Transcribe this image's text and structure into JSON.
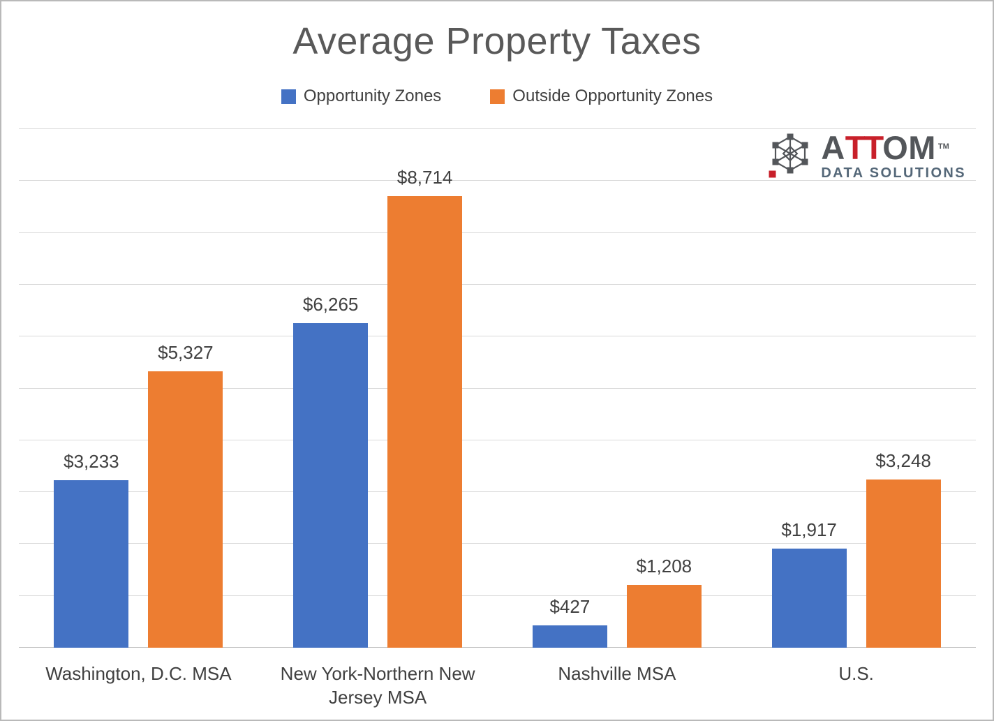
{
  "chart_data": {
    "type": "bar",
    "title": "Average Property Taxes",
    "categories": [
      "Washington, D.C. MSA",
      "New York-Northern New Jersey MSA",
      "Nashville MSA",
      "U.S."
    ],
    "series": [
      {
        "name": "Opportunity Zones",
        "color": "#4472C4",
        "values": [
          3233,
          6265,
          427,
          1917
        ],
        "labels": [
          "$3,233",
          "$6,265",
          "$427",
          "$1,917"
        ]
      },
      {
        "name": "Outside Opportunity Zones",
        "color": "#ED7D31",
        "values": [
          5327,
          8714,
          1208,
          3248
        ],
        "labels": [
          "$5,327",
          "$8,714",
          "$1,208",
          "$3,248"
        ]
      }
    ],
    "ylim": [
      0,
      10000
    ],
    "gridline_step": 1000,
    "grid": true,
    "legend_position": "top",
    "y_axis_labels_visible": false
  },
  "logo": {
    "brand_part1": "A",
    "brand_part2": "TT",
    "brand_part3": "OM",
    "trademark": "TM",
    "subtitle": "DATA SOLUTIONS"
  },
  "colors": {
    "series1": "#4472C4",
    "series2": "#ED7D31",
    "title_text": "#595959",
    "label_text": "#404040",
    "gridline": "#D9D9D9",
    "baseline": "#BFBFBF",
    "page_border": "#B9B9B9",
    "logo_dark": "#53565A",
    "logo_red": "#C8202A",
    "logo_subtitle": "#546778"
  }
}
